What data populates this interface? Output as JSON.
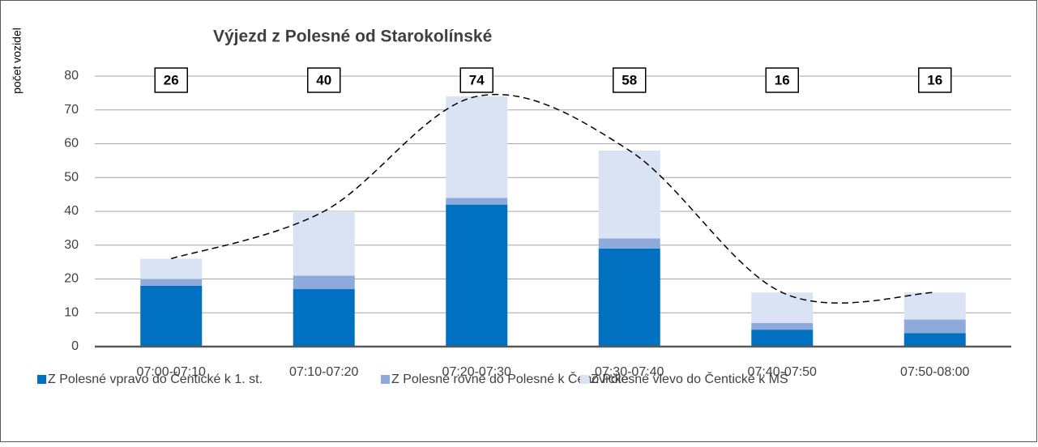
{
  "chart_data": {
    "type": "stacked-bar",
    "title": "Výjezd z Polesné od Starokolínské",
    "y_label": "počet vozidel",
    "categories": [
      "07:00-07:10",
      "07:10-07:20",
      "07:20-07:30",
      "07:30-07:40",
      "07:40-07:50",
      "07:50-08:00"
    ],
    "series": [
      {
        "name": "Z Polesné vpravo do Čentické k 1. st.",
        "color": "#0070c0",
        "values": [
          18,
          17,
          42,
          29,
          5,
          4
        ]
      },
      {
        "name": "Z Polesné rovně do Polesné k Čenovické",
        "color": "#8eaadb",
        "values": [
          2,
          4,
          2,
          3,
          2,
          4
        ]
      },
      {
        "name": "Z Polesné vlevo do Čentické k MŠ",
        "color": "#dae3f3",
        "values": [
          6,
          19,
          30,
          26,
          9,
          8
        ]
      }
    ],
    "totals": [
      26,
      40,
      74,
      58,
      16,
      16
    ],
    "ylim": [
      0,
      80
    ],
    "yticks": [
      0,
      10,
      20,
      30,
      40,
      50,
      60,
      70,
      80
    ],
    "grid": true,
    "legend": "bottom"
  }
}
